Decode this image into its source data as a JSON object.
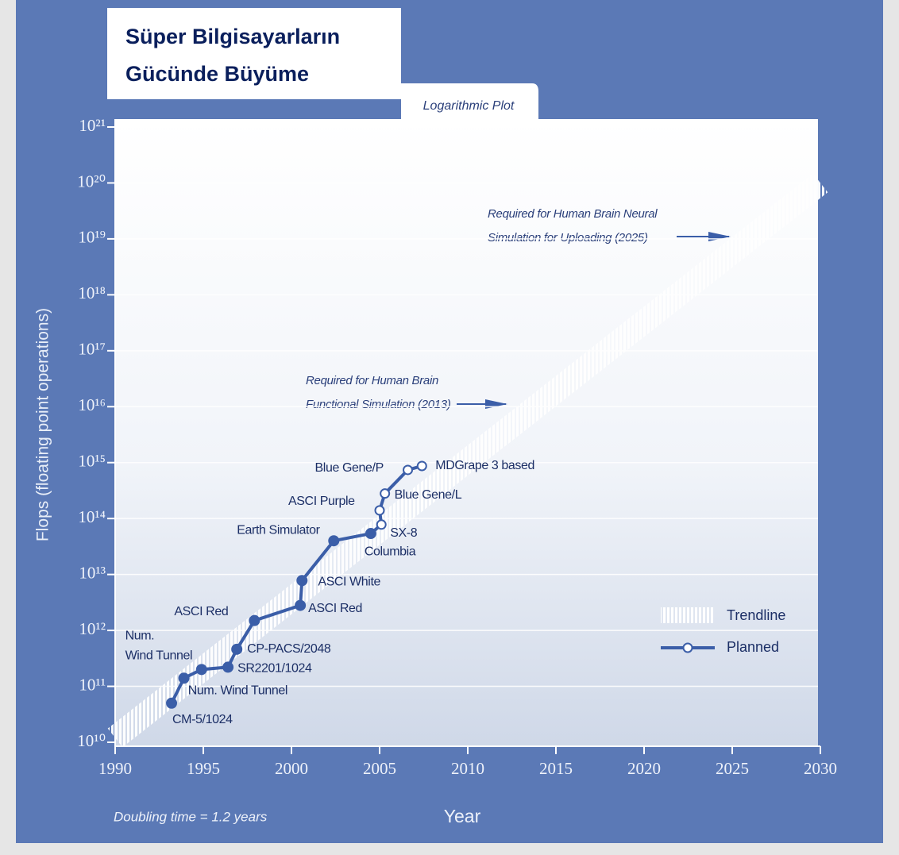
{
  "chart_data": {
    "type": "line",
    "title": [
      "Süper Bilgisayarların",
      "Gücünde Büyüme"
    ],
    "subtitle": "Logarithmic Plot",
    "x_label": "Year",
    "y_label": "Flops (floating point operations)",
    "note": "Doubling time = 1.2 years",
    "log_y": true,
    "grid": true,
    "xlim": [
      1990,
      2030
    ],
    "xticks": [
      1990,
      1995,
      2000,
      2005,
      2010,
      2015,
      2020,
      2025,
      2030
    ],
    "ylim": [
      10000000000.0,
      1e+21
    ],
    "yticks": [
      {
        "value": 10000000000.0,
        "label": "10¹⁰"
      },
      {
        "value": 100000000000.0,
        "label": "10¹¹"
      },
      {
        "value": 1000000000000.0,
        "label": "10¹²"
      },
      {
        "value": 10000000000000.0,
        "label": "10¹³"
      },
      {
        "value": 100000000000000.0,
        "label": "10¹⁴"
      },
      {
        "value": 1000000000000000.0,
        "label": "10¹⁵"
      },
      {
        "value": 1e+16,
        "label": "10¹⁶"
      },
      {
        "value": 1e+17,
        "label": "10¹⁷"
      },
      {
        "value": 1e+18,
        "label": "10¹⁸"
      },
      {
        "value": 1e+19,
        "label": "10¹⁹"
      },
      {
        "value": 1e+20,
        "label": "10²⁰"
      },
      {
        "value": 1e+21,
        "label": "10²¹"
      }
    ],
    "series": [
      {
        "color": "#3b5ea8",
        "x": [
          1993.2,
          1993.9,
          1994.9,
          1996.4,
          1996.9,
          1997.9,
          2000.5,
          2000.6,
          2002.4,
          2004.5,
          2005.1,
          2005.0,
          2005.3,
          2006.6,
          2007.4
        ],
        "values": [
          50000000000.0,
          140000000000.0,
          200000000000.0,
          220000000000.0,
          460000000000.0,
          1500000000000.0,
          2800000000000.0,
          7800000000000.0,
          40000000000000.0,
          54000000000000.0,
          78000000000000.0,
          140000000000000.0,
          280000000000000.0,
          740000000000000.0,
          870000000000000.0
        ],
        "planned": [
          false,
          false,
          false,
          false,
          false,
          false,
          false,
          false,
          false,
          false,
          true,
          true,
          true,
          true,
          true
        ],
        "point_labels": [
          "CM-5/1024",
          [
            "Num.",
            "Wind Tunnel"
          ],
          "Num. Wind Tunnel",
          "SR2201/1024",
          "CP-PACS/2048",
          "ASCI Red",
          "ASCI Red",
          "ASCI White",
          "Earth Simulator",
          "Columbia",
          "SX-8",
          "ASCI Purple",
          "Blue Gene/L",
          "Blue Gene/P",
          "MDGrape 3 based"
        ]
      }
    ],
    "trendline": {
      "name": "Trendline",
      "x": [
        1990,
        2030
      ],
      "values": [
        12000000000.0,
        1e+20
      ]
    },
    "planned_name": "Planned",
    "annotations": [
      [
        "Required for Human Brain",
        "Functional Simulation (2013)"
      ],
      [
        "Required for Human Brain Neural",
        "Simulation for Uploading (2025)"
      ]
    ]
  }
}
